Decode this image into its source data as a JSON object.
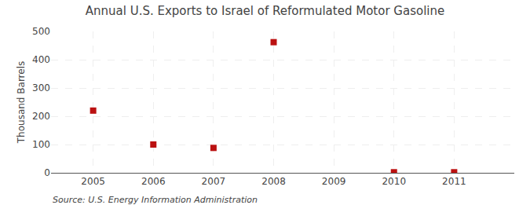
{
  "chart_data": {
    "type": "scatter",
    "title": "Annual U.S. Exports to Israel of Reformulated Motor Gasoline",
    "ylabel": "Thousand Barrels",
    "annotations": [
      "Source: U.S. Energy Information Administration"
    ],
    "x": [
      2005,
      2006,
      2007,
      2008,
      2009,
      2010,
      2011
    ],
    "values": [
      220,
      100,
      88,
      462,
      null,
      2,
      2
    ],
    "color": "#bb1111",
    "marker": "square",
    "xlim": [
      2004.3,
      2012.0
    ],
    "xticks": [
      2005,
      2006,
      2007,
      2008,
      2009,
      2010,
      2011
    ],
    "ylim": [
      0,
      500
    ],
    "yticks": [
      0,
      100,
      200,
      300,
      400,
      500
    ],
    "grid": true
  }
}
